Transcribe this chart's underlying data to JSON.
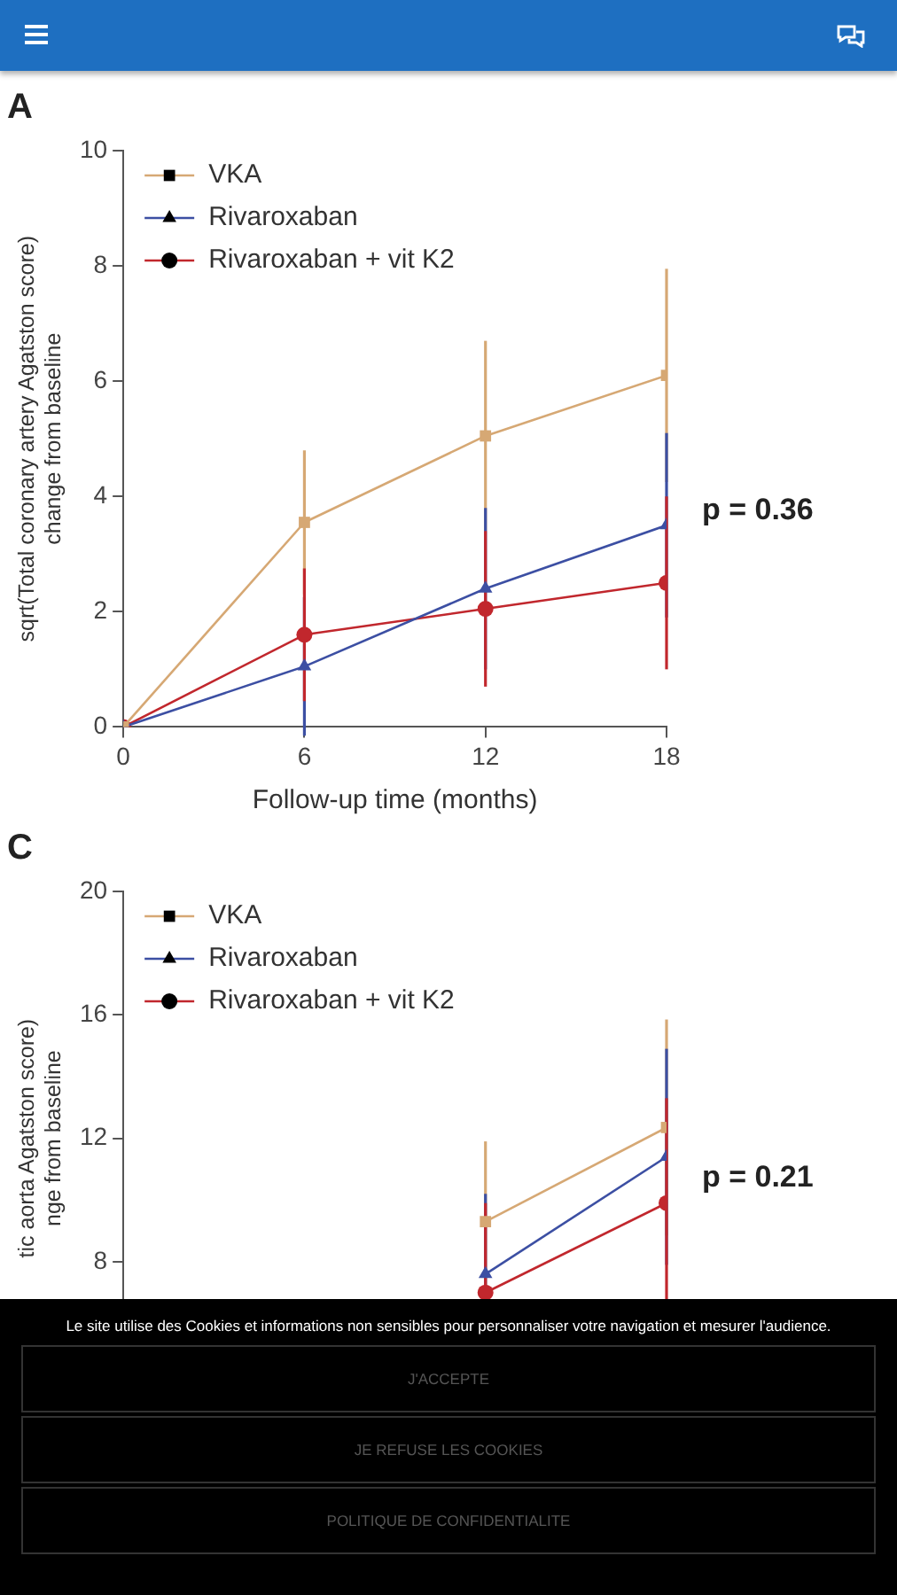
{
  "chart_data": [
    {
      "type": "line",
      "title": "A",
      "xlabel": "Follow-up time (months)",
      "ylabel": "sqrt(Total coronary artery Agatston score)\nchange from baseline",
      "x": [
        0,
        6,
        12,
        18
      ],
      "xlim": [
        0,
        18
      ],
      "xticks": [
        0,
        6,
        12,
        18
      ],
      "ylim": [
        0,
        10
      ],
      "yticks": [
        0,
        2,
        4,
        6,
        8,
        10
      ],
      "grid": false,
      "legend": "top left",
      "series": [
        {
          "name": "VKA",
          "color": "#d6a874",
          "marker": "square",
          "values": [
            0,
            3.55,
            5.05,
            6.1
          ],
          "errors": [
            null,
            1.25,
            1.65,
            1.85
          ]
        },
        {
          "name": "Rivaroxaban",
          "color": "#3c4fa3",
          "marker": "triangle",
          "values": [
            0,
            1.05,
            2.4,
            3.5
          ],
          "errors": [
            null,
            1.2,
            1.4,
            1.6
          ]
        },
        {
          "name": "Rivaroxaban + vit K2",
          "color": "#c1272d",
          "marker": "circle",
          "values": [
            0,
            1.6,
            2.05,
            2.5
          ],
          "errors": [
            null,
            1.15,
            1.35,
            1.5
          ]
        }
      ],
      "annotations": [
        {
          "text": "p = 0.36",
          "x": 18,
          "y": 3.75
        }
      ]
    },
    {
      "type": "line",
      "title": "C",
      "ylabel": "tic aorta Agatston score)\nnge from baseline",
      "x": [
        12,
        18
      ],
      "xlim": [
        0,
        18
      ],
      "ylim": [
        4,
        20
      ],
      "yticks": [
        8,
        12,
        16,
        20
      ],
      "tick_labels": "y",
      "grid": false,
      "legend": "top left",
      "series": [
        {
          "name": "VKA",
          "color": "#d6a874",
          "marker": "square",
          "values": [
            9.3,
            12.35
          ],
          "errors": [
            2.6,
            3.5
          ]
        },
        {
          "name": "Rivaroxaban",
          "color": "#3c4fa3",
          "marker": "triangle",
          "values": [
            7.6,
            11.4
          ],
          "errors": [
            2.6,
            3.5
          ]
        },
        {
          "name": "Rivaroxaban + vit K2",
          "color": "#c1272d",
          "marker": "circle",
          "values": [
            7.0,
            9.9
          ],
          "errors": [
            2.9,
            3.4
          ]
        }
      ],
      "annotations": [
        {
          "text": "p = 0.21",
          "x": 18,
          "y": 10.7
        }
      ]
    },
    {
      "type": "other",
      "annotations": [
        "Le site utilise des Cookies et informations non sensibles pour personnaliser votre navigation et mesurer l'audience.",
        "J'ACCEPTE",
        "JE REFUSE LES COOKIES",
        "POLITIQUE DE CONFIDENTIALITE"
      ]
    }
  ]
}
